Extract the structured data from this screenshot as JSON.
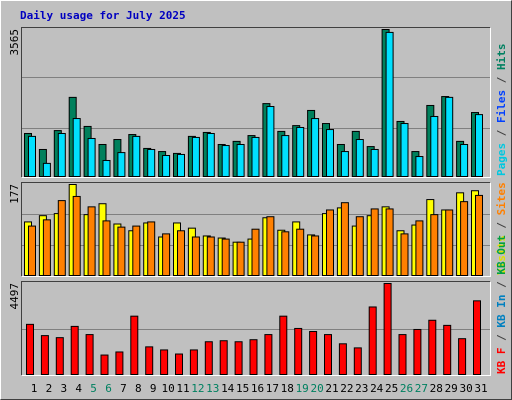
{
  "chart_data": [
    {
      "type": "bar",
      "title": "Daily usage for July 2025",
      "ylim": [
        0,
        3565
      ],
      "yticks": [
        3565
      ],
      "series": [
        {
          "name": "Hits",
          "color": "#00805c",
          "values": [
            1060,
            675,
            1130,
            1930,
            1230,
            795,
            915,
            1035,
            700,
            625,
            580,
            990,
            1085,
            795,
            870,
            1010,
            1780,
            1110,
            1250,
            1615,
            1300,
            795,
            1110,
            745,
            3565,
            1350,
            625,
            1735,
            1950,
            870,
            1565
          ]
        },
        {
          "name": "Pages",
          "color": "#00e0ff",
          "values": [
            990,
            340,
            1060,
            1420,
            940,
            410,
            600,
            990,
            675,
            530,
            555,
            965,
            1060,
            770,
            795,
            965,
            1710,
            1010,
            1205,
            1420,
            1155,
            625,
            915,
            675,
            3495,
            1300,
            505,
            1470,
            1930,
            795,
            1515
          ]
        }
      ],
      "legend": [
        {
          "text": "Pages",
          "color": "#00c8e0"
        },
        {
          "text": " / ",
          "color": "#404040"
        },
        {
          "text": "Files",
          "color": "#0040ff"
        },
        {
          "text": " / ",
          "color": "#404040"
        },
        {
          "text": "Hits",
          "color": "#008060"
        }
      ]
    },
    {
      "type": "bar",
      "ylim": [
        0,
        177
      ],
      "yticks": [
        177
      ],
      "series": [
        {
          "name": "Visits",
          "color": "#ffff00",
          "values": [
            105,
            117,
            121,
            177,
            119,
            140,
            101,
            88,
            103,
            76,
            103,
            93,
            78,
            74,
            66,
            72,
            113,
            89,
            105,
            80,
            121,
            132,
            97,
            117,
            134,
            88,
            99,
            148,
            128,
            161,
            165
          ]
        },
        {
          "name": "Sites",
          "color": "#ff8000",
          "values": [
            97,
            109,
            146,
            154,
            134,
            107,
            95,
            97,
            105,
            82,
            88,
            76,
            76,
            72,
            66,
            91,
            115,
            86,
            91,
            78,
            128,
            142,
            115,
            130,
            130,
            82,
            107,
            119,
            128,
            144,
            156
          ]
        }
      ],
      "legend": [
        {
          "text": "Visits",
          "color": "#e0e000"
        },
        {
          "text": " / ",
          "color": "#404040"
        },
        {
          "text": "Sites",
          "color": "#ff8000"
        }
      ]
    },
    {
      "type": "bar",
      "ylim": [
        0,
        4497
      ],
      "yticks": [
        4497
      ],
      "categories": [
        "1",
        "2",
        "3",
        "4",
        "5",
        "6",
        "7",
        "8",
        "9",
        "10",
        "11",
        "12",
        "13",
        "14",
        "15",
        "16",
        "17",
        "18",
        "19",
        "20",
        "21",
        "22",
        "23",
        "24",
        "25",
        "26",
        "27",
        "28",
        "29",
        "30",
        "31"
      ],
      "category_colors": [
        "#000000",
        "#000000",
        "#000000",
        "#000000",
        "#008060",
        "#008060",
        "#000000",
        "#000000",
        "#000000",
        "#000000",
        "#000000",
        "#008060",
        "#008060",
        "#000000",
        "#000000",
        "#000000",
        "#000000",
        "#000000",
        "#008060",
        "#008060",
        "#000000",
        "#000000",
        "#000000",
        "#000000",
        "#000000",
        "#008060",
        "#008060",
        "#000000",
        "#000000",
        "#000000",
        "#000000"
      ],
      "series": [
        {
          "name": "KB F",
          "color": "#ff0000",
          "values": [
            2500,
            1950,
            1850,
            2400,
            2000,
            1000,
            1150,
            2900,
            1400,
            1250,
            1050,
            1250,
            1650,
            1700,
            1650,
            1750,
            2000,
            2900,
            2300,
            2150,
            2000,
            1550,
            1350,
            3350,
            4497,
            2000,
            2250,
            2700,
            2450,
            1800,
            3650
          ]
        }
      ],
      "legend": [
        {
          "text": "KB F",
          "color": "#ff0000"
        },
        {
          "text": " / ",
          "color": "#404040"
        },
        {
          "text": "KB In",
          "color": "#0080c0"
        },
        {
          "text": " / ",
          "color": "#404040"
        },
        {
          "text": "KB Out",
          "color": "#00a040"
        }
      ]
    }
  ]
}
